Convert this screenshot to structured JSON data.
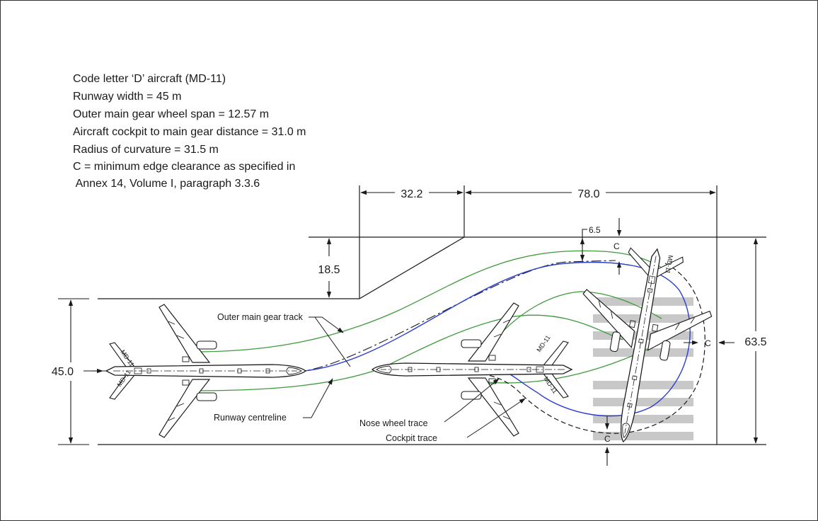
{
  "specs": {
    "line1": "Code letter ‘D’ aircraft (MD-11)",
    "line2": "Runway width = 45 m",
    "line3": "Outer main gear wheel span = 12.57 m",
    "line4": "Aircraft cockpit to main gear distance = 31.0 m",
    "line5": "Radius of curvature = 31.5 m",
    "line6": "C = minimum edge clearance as specified in",
    "line7": " Annex 14, Volume I, paragraph 3.3.6"
  },
  "dimensions": {
    "widening_length": "32.2",
    "turn_length": "78.0",
    "widening_width": "18.5",
    "runway_width": "45.0",
    "pad_width": "63.5",
    "side_offset": "6.5"
  },
  "labels": {
    "outer_main_gear_track": "Outer main gear track",
    "runway_centreline": "Runway centreline",
    "nose_wheel_trace": "Nose wheel trace",
    "cockpit_trace": "Cockpit trace",
    "clearance_top": "C",
    "clearance_right": "C",
    "clearance_bottom": "C"
  },
  "aircraft_markings": {
    "tail_left_top": "MD-11",
    "tail_left_bottom": "MD-11",
    "tail_mid_top": "MD-11",
    "tail_mid_bottom": "MD-11",
    "tail_right": "MD-11"
  },
  "colors": {
    "outline": "#1a1a1a",
    "outer_gear_track": "#3e9a3a",
    "nose_wheel_trace": "#2a3fd0",
    "marking": "#c8c8c8"
  }
}
